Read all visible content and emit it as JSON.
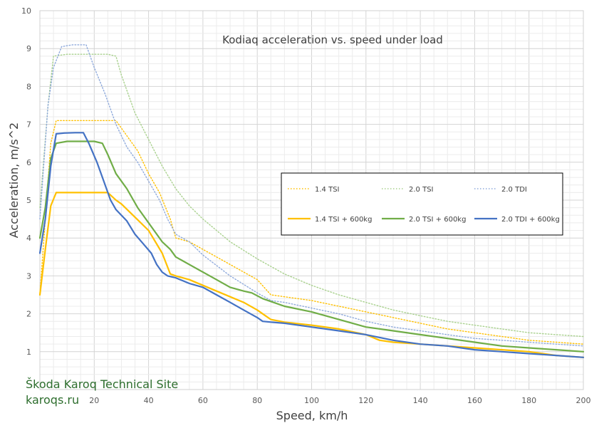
{
  "chart_data": {
    "type": "line",
    "title": "Kodiaq acceleration vs. speed under load",
    "xlabel": "Speed, km/h",
    "ylabel": "Acceleration, m/s^2",
    "xlim": [
      0,
      200
    ],
    "ylim": [
      0,
      10
    ],
    "xticks": [
      0,
      20,
      40,
      60,
      80,
      100,
      120,
      140,
      160,
      180,
      200
    ],
    "yticks": [
      0,
      1,
      2,
      3,
      4,
      5,
      6,
      7,
      8,
      9,
      10
    ],
    "x_tick_labels": [
      "",
      "20",
      "40",
      "60",
      "80",
      "100",
      "120",
      "140",
      "160",
      "180",
      "200"
    ],
    "y_tick_labels": [
      "",
      "1",
      "2",
      "3",
      "4",
      "5",
      "6",
      "7",
      "8",
      "9",
      "10"
    ],
    "grid": "major and minor",
    "legend": "center-right",
    "series": [
      {
        "name": "1.4 TSI",
        "color": "#ffc000",
        "style": "dotted",
        "points": [
          [
            0,
            2.5
          ],
          [
            2,
            4.5
          ],
          [
            4,
            6.5
          ],
          [
            6,
            7.1
          ],
          [
            10,
            7.1
          ],
          [
            20,
            7.1
          ],
          [
            28,
            7.1
          ],
          [
            32,
            6.7
          ],
          [
            36,
            6.3
          ],
          [
            40,
            5.7
          ],
          [
            44,
            5.2
          ],
          [
            48,
            4.5
          ],
          [
            50,
            4.0
          ],
          [
            55,
            3.9
          ],
          [
            60,
            3.7
          ],
          [
            70,
            3.3
          ],
          [
            80,
            2.9
          ],
          [
            85,
            2.5
          ],
          [
            90,
            2.45
          ],
          [
            100,
            2.35
          ],
          [
            110,
            2.2
          ],
          [
            120,
            2.05
          ],
          [
            130,
            1.9
          ],
          [
            140,
            1.75
          ],
          [
            150,
            1.6
          ],
          [
            160,
            1.5
          ],
          [
            170,
            1.4
          ],
          [
            180,
            1.3
          ],
          [
            190,
            1.25
          ],
          [
            200,
            1.2
          ]
        ]
      },
      {
        "name": "2.0 TSI",
        "color": "#a9d18e",
        "style": "dotted",
        "points": [
          [
            0,
            4.8
          ],
          [
            3,
            7.5
          ],
          [
            5,
            8.8
          ],
          [
            10,
            8.85
          ],
          [
            20,
            8.85
          ],
          [
            25,
            8.85
          ],
          [
            28,
            8.8
          ],
          [
            30,
            8.3
          ],
          [
            35,
            7.3
          ],
          [
            40,
            6.6
          ],
          [
            45,
            5.9
          ],
          [
            50,
            5.3
          ],
          [
            55,
            4.85
          ],
          [
            60,
            4.5
          ],
          [
            70,
            3.9
          ],
          [
            80,
            3.45
          ],
          [
            90,
            3.05
          ],
          [
            100,
            2.75
          ],
          [
            110,
            2.5
          ],
          [
            120,
            2.3
          ],
          [
            130,
            2.1
          ],
          [
            140,
            1.95
          ],
          [
            150,
            1.8
          ],
          [
            160,
            1.7
          ],
          [
            170,
            1.6
          ],
          [
            180,
            1.5
          ],
          [
            190,
            1.45
          ],
          [
            200,
            1.4
          ]
        ]
      },
      {
        "name": "2.0 TDI",
        "color": "#8faadc",
        "style": "dotted",
        "points": [
          [
            0,
            4.5
          ],
          [
            3,
            7.5
          ],
          [
            5,
            8.5
          ],
          [
            8,
            9.05
          ],
          [
            12,
            9.1
          ],
          [
            17,
            9.1
          ],
          [
            20,
            8.5
          ],
          [
            24,
            7.8
          ],
          [
            28,
            7.0
          ],
          [
            32,
            6.4
          ],
          [
            36,
            6.0
          ],
          [
            40,
            5.5
          ],
          [
            44,
            5.0
          ],
          [
            47,
            4.5
          ],
          [
            50,
            4.1
          ],
          [
            55,
            3.9
          ],
          [
            60,
            3.55
          ],
          [
            70,
            3.0
          ],
          [
            80,
            2.55
          ],
          [
            85,
            2.35
          ],
          [
            90,
            2.3
          ],
          [
            100,
            2.15
          ],
          [
            110,
            2.0
          ],
          [
            120,
            1.8
          ],
          [
            130,
            1.65
          ],
          [
            140,
            1.55
          ],
          [
            150,
            1.45
          ],
          [
            160,
            1.35
          ],
          [
            170,
            1.3
          ],
          [
            180,
            1.25
          ],
          [
            190,
            1.2
          ],
          [
            200,
            1.15
          ]
        ]
      },
      {
        "name": "1.4 TSI + 600kg",
        "color": "#ffc000",
        "style": "solid",
        "points": [
          [
            0,
            2.5
          ],
          [
            2,
            3.7
          ],
          [
            4,
            4.85
          ],
          [
            6,
            5.2
          ],
          [
            10,
            5.2
          ],
          [
            15,
            5.2
          ],
          [
            20,
            5.2
          ],
          [
            25,
            5.2
          ],
          [
            28,
            5.0
          ],
          [
            30,
            4.9
          ],
          [
            35,
            4.55
          ],
          [
            40,
            4.2
          ],
          [
            45,
            3.6
          ],
          [
            48,
            3.05
          ],
          [
            50,
            3.0
          ],
          [
            55,
            2.9
          ],
          [
            60,
            2.75
          ],
          [
            65,
            2.6
          ],
          [
            70,
            2.45
          ],
          [
            75,
            2.3
          ],
          [
            80,
            2.1
          ],
          [
            83,
            1.95
          ],
          [
            85,
            1.85
          ],
          [
            90,
            1.78
          ],
          [
            100,
            1.7
          ],
          [
            110,
            1.6
          ],
          [
            120,
            1.45
          ],
          [
            125,
            1.3
          ],
          [
            130,
            1.25
          ],
          [
            140,
            1.2
          ],
          [
            150,
            1.15
          ],
          [
            160,
            1.1
          ],
          [
            170,
            1.05
          ],
          [
            180,
            1.0
          ],
          [
            190,
            0.9
          ],
          [
            200,
            0.85
          ]
        ]
      },
      {
        "name": "2.0 TSI + 600kg",
        "color": "#70ad47",
        "style": "solid",
        "points": [
          [
            0,
            4.0
          ],
          [
            2,
            4.8
          ],
          [
            4,
            6.1
          ],
          [
            6,
            6.5
          ],
          [
            10,
            6.55
          ],
          [
            15,
            6.55
          ],
          [
            20,
            6.55
          ],
          [
            23,
            6.5
          ],
          [
            25,
            6.2
          ],
          [
            28,
            5.7
          ],
          [
            32,
            5.3
          ],
          [
            36,
            4.8
          ],
          [
            40,
            4.4
          ],
          [
            45,
            3.9
          ],
          [
            48,
            3.7
          ],
          [
            50,
            3.5
          ],
          [
            55,
            3.3
          ],
          [
            60,
            3.1
          ],
          [
            65,
            2.9
          ],
          [
            70,
            2.7
          ],
          [
            75,
            2.6
          ],
          [
            78,
            2.55
          ],
          [
            82,
            2.4
          ],
          [
            90,
            2.2
          ],
          [
            100,
            2.05
          ],
          [
            110,
            1.85
          ],
          [
            120,
            1.65
          ],
          [
            130,
            1.55
          ],
          [
            140,
            1.45
          ],
          [
            150,
            1.35
          ],
          [
            160,
            1.25
          ],
          [
            170,
            1.15
          ],
          [
            180,
            1.1
          ],
          [
            190,
            1.05
          ],
          [
            200,
            1.0
          ]
        ]
      },
      {
        "name": "2.0 TDI + 600kg",
        "color": "#4472c4",
        "style": "solid",
        "points": [
          [
            0,
            3.6
          ],
          [
            2,
            4.5
          ],
          [
            4,
            5.9
          ],
          [
            6,
            6.75
          ],
          [
            9,
            6.77
          ],
          [
            13,
            6.78
          ],
          [
            16,
            6.78
          ],
          [
            18,
            6.5
          ],
          [
            21,
            6.0
          ],
          [
            24,
            5.4
          ],
          [
            26,
            5.0
          ],
          [
            28,
            4.75
          ],
          [
            32,
            4.45
          ],
          [
            35,
            4.1
          ],
          [
            38,
            3.85
          ],
          [
            41,
            3.6
          ],
          [
            43,
            3.3
          ],
          [
            45,
            3.1
          ],
          [
            47,
            3.0
          ],
          [
            50,
            2.95
          ],
          [
            55,
            2.8
          ],
          [
            60,
            2.7
          ],
          [
            65,
            2.5
          ],
          [
            70,
            2.3
          ],
          [
            75,
            2.1
          ],
          [
            80,
            1.9
          ],
          [
            82,
            1.8
          ],
          [
            85,
            1.78
          ],
          [
            90,
            1.75
          ],
          [
            100,
            1.65
          ],
          [
            110,
            1.55
          ],
          [
            120,
            1.45
          ],
          [
            130,
            1.3
          ],
          [
            140,
            1.2
          ],
          [
            150,
            1.15
          ],
          [
            160,
            1.05
          ],
          [
            170,
            1.0
          ],
          [
            180,
            0.95
          ],
          [
            190,
            0.9
          ],
          [
            200,
            0.85
          ]
        ]
      }
    ]
  },
  "watermark": {
    "line1": "Škoda Karoq Technical Site",
    "line2": "karoqs.ru"
  }
}
